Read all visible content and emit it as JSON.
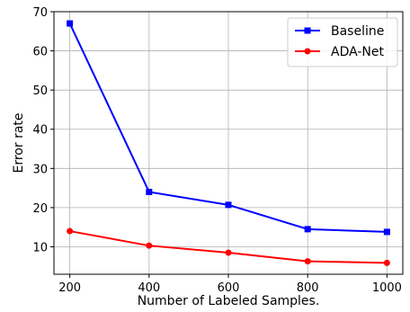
{
  "chart_data": {
    "type": "line",
    "title": "",
    "xlabel": "Number of Labeled Samples.",
    "ylabel": "Error rate",
    "x": [
      200,
      400,
      600,
      800,
      1000
    ],
    "xticks": [
      "200",
      "400",
      "600",
      "800",
      "1000"
    ],
    "yticks": [
      "10",
      "20",
      "30",
      "40",
      "50",
      "60",
      "70"
    ],
    "xlim": [
      160,
      1040
    ],
    "ylim": [
      3,
      70
    ],
    "grid": true,
    "legend_position": "top-right",
    "series": [
      {
        "name": "Baseline",
        "color": "#0000ff",
        "marker": "square",
        "values": [
          67.0,
          24.0,
          20.7,
          14.5,
          13.8
        ]
      },
      {
        "name": "ADA-Net",
        "color": "#ff0000",
        "marker": "circle",
        "values": [
          14.0,
          10.3,
          8.5,
          6.3,
          5.9
        ]
      }
    ]
  }
}
